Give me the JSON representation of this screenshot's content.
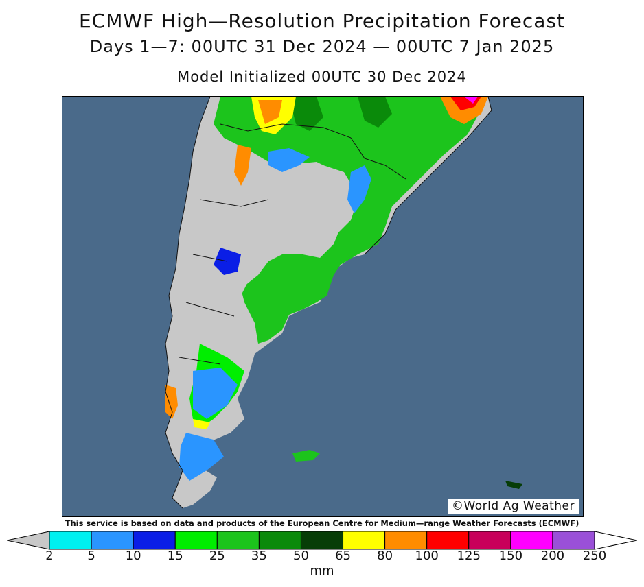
{
  "header": {
    "title": "ECMWF High—Resolution Precipitation Forecast",
    "subtitle": "Days 1—7: 00UTC 31 Dec 2024 — 00UTC 7 Jan 2025",
    "init": "Model Initialized 00UTC 30 Dec 2024"
  },
  "map": {
    "credit": "©World Ag Weather",
    "ocean_color": "#4a6a8a"
  },
  "disclaimer": "This service is based on data and products of the European Centre for Medium—range Weather Forecasts (ECMWF)",
  "legend": {
    "unit": "mm",
    "ticks": [
      "2",
      "5",
      "10",
      "15",
      "25",
      "35",
      "50",
      "65",
      "80",
      "100",
      "125",
      "150",
      "200",
      "250"
    ],
    "colors": [
      "#c8c8c8",
      "#00f0f0",
      "#2a95ff",
      "#0a1ee6",
      "#00ee00",
      "#1cc41c",
      "#0a8a0a",
      "#073d07",
      "#ffff00",
      "#ff8c00",
      "#ff0000",
      "#c8005a",
      "#ff00ff",
      "#9a50d8"
    ]
  }
}
